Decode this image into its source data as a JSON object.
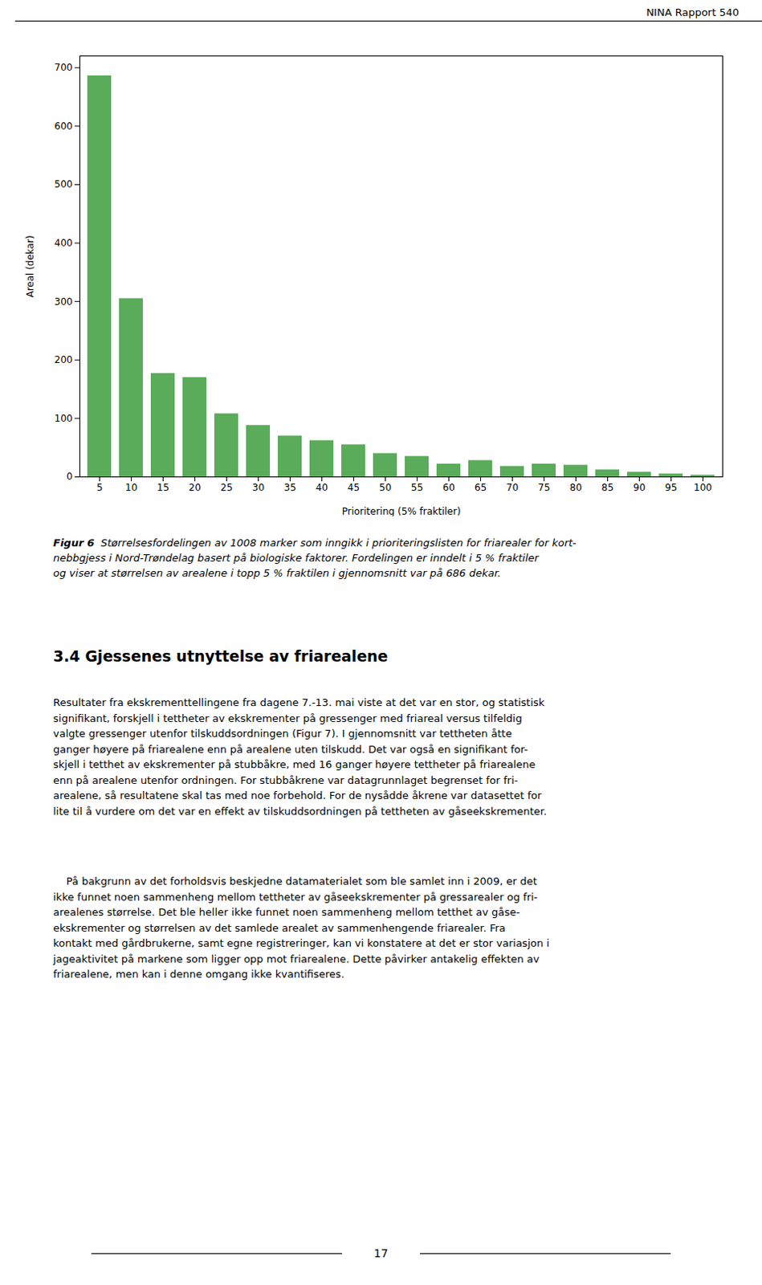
{
  "chart_data": {
    "type": "bar",
    "categories": [
      5,
      10,
      15,
      20,
      25,
      30,
      35,
      40,
      45,
      50,
      55,
      60,
      65,
      70,
      75,
      80,
      85,
      90,
      95,
      100
    ],
    "values": [
      686,
      305,
      177,
      170,
      108,
      88,
      70,
      62,
      55,
      40,
      35,
      22,
      28,
      18,
      22,
      20,
      12,
      8,
      5,
      3
    ],
    "color": "#5aab5a",
    "xlabel": "Prioritering (5% fraktiler)",
    "ylabel": "Areal (dekar)",
    "ylim": [
      0,
      720
    ],
    "yticks": [
      0,
      100,
      200,
      300,
      400,
      500,
      600,
      700
    ],
    "grid": false,
    "annotations": [
      "NINA Rapport 540",
      "Figur 6",
      "Størrelsesfordelingen av 1008 marker som inngikk i prioriteringslisten for friarealer for kort-\nnebbgjess i Nord-Trøndelag basert på biologiske faktorer. Fordelingen er inndelt i 5 % fraktiler\nog viser at størrelsen av arealene i topp 5 % fraktilen i gjennomsnitt var på 686 dekar.",
      "3.4 Gjessenes utnyttelse av friarealene",
      "Resultater fra ekskrementtellingene fra dagene 7.-13. mai viste at det var en stor, og statistisk\nsignifikant, forskjell i tettheter av ekskrementer på gressenger med friareal versus tilfeldig\nvalgte gressenger utenfor tilskuddsordningen (Figur 7). I gjennomsnitt var tettheten åtte\nganger høyere på friarealene enn på arealene uten tilskudd. Det var også en signifikant for-\nskjell i tetthet av ekskrementer på stubbåkre, med 16 ganger høyere tettheter på friarealene\nenn på arealene utenfor ordningen. For stubbåkrene var datagrunnlaget begrenset for fri-\narealene, så resultatene skal tas med noe forbehold. For de nysådde åkrene var datasettet for\nlite til å vurdere om det var en effekt av tilskuddsordningen på tettheten av gåseekskrementer.",
      "\tPå bakgrunn av det forholdsvis beskjedne datamaterialet som ble samlet inn i 2009, er det\nikke funnet noen sammenheng mellom tettheter av gåseekskrementer på gressarealer og fri-\narealenes størrelse. Det ble heller ikke funnet noen sammenheng mellom tetthet av gåse-\nekskrementer og størrelsen av det samlede arealet av sammenhengende friarealer. Fra\nkontakt med gårdbrukerne, samt egne registreringer, kan vi konstatere at det er stor variasjon i\njageaktivitet på markene som ligger opp mot friarealene. Dette påvirker antakelig effekten av\nfriarealene, men kan i denne omgang ikke kvantifiseres.",
      "17"
    ]
  }
}
